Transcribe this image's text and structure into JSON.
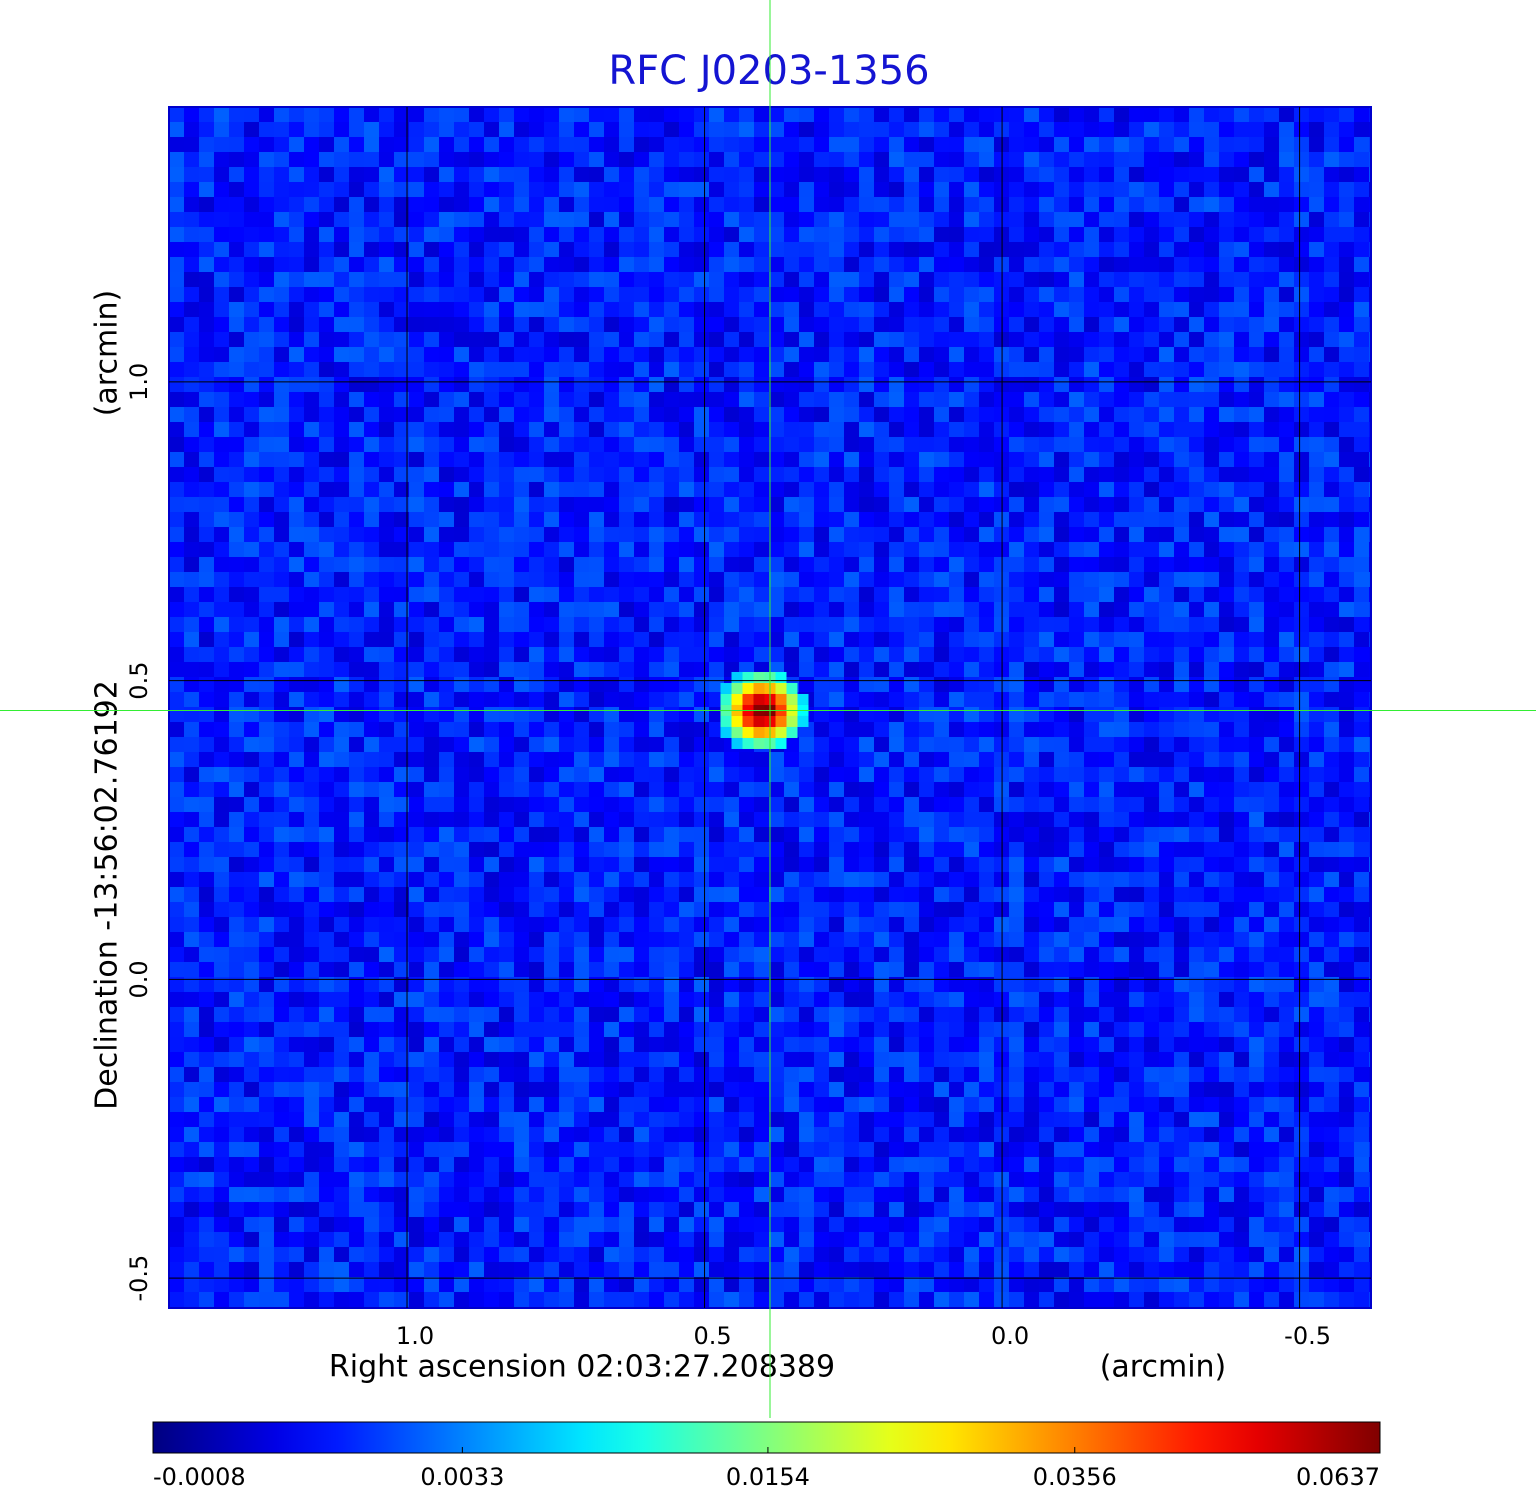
{
  "chart_data": {
    "type": "image",
    "title": "RFC J0203-1356",
    "title_color": "#1414d2",
    "x_label": "Right ascension  02:03:27.208389",
    "x_unit": "(arcmin)",
    "y_label": "Declination  -13:56:02.76192",
    "y_unit": "(arcmin)",
    "xlim": [
      1.4,
      -0.62
    ],
    "ylim": [
      -0.55,
      1.46
    ],
    "xticks": [
      {
        "value": 1.0,
        "label": "1.0"
      },
      {
        "value": 0.5,
        "label": "0.5"
      },
      {
        "value": 0.0,
        "label": "0.0"
      },
      {
        "value": -0.5,
        "label": "-0.5"
      }
    ],
    "yticks": [
      {
        "value": -0.5,
        "label": "-0.5"
      },
      {
        "value": 0.0,
        "label": "0.0"
      },
      {
        "value": 0.5,
        "label": "0.5"
      },
      {
        "value": 1.0,
        "label": "1.0"
      }
    ],
    "grid": true,
    "crosshair": {
      "x": 0.39,
      "y": 0.45,
      "color": "#33ee33"
    },
    "peak": {
      "x": 0.39,
      "y": 0.45,
      "value": 0.0637
    },
    "colorbar": {
      "colormap": "jet",
      "scale": "sqrt",
      "lim": [
        -0.0008,
        0.0637
      ],
      "ticks": [
        -0.0008,
        0.0033,
        0.0154,
        0.0356,
        0.0637
      ]
    }
  }
}
